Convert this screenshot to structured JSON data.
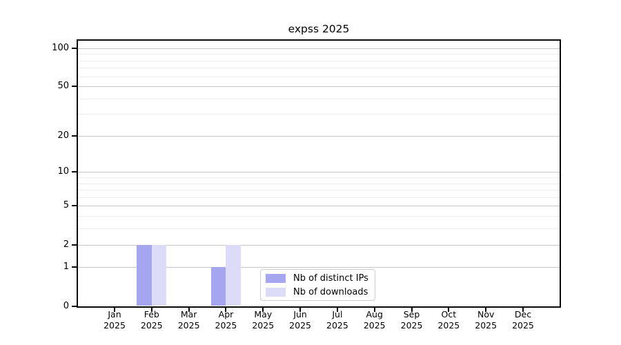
{
  "title": "expss 2025",
  "chart_data": {
    "type": "bar",
    "title": "expss 2025",
    "x_categories": [
      {
        "month": "Jan",
        "year": "2025"
      },
      {
        "month": "Feb",
        "year": "2025"
      },
      {
        "month": "Mar",
        "year": "2025"
      },
      {
        "month": "Apr",
        "year": "2025"
      },
      {
        "month": "May",
        "year": "2025"
      },
      {
        "month": "Jun",
        "year": "2025"
      },
      {
        "month": "Jul",
        "year": "2025"
      },
      {
        "month": "Aug",
        "year": "2025"
      },
      {
        "month": "Sep",
        "year": "2025"
      },
      {
        "month": "Oct",
        "year": "2025"
      },
      {
        "month": "Nov",
        "year": "2025"
      },
      {
        "month": "Dec",
        "year": "2025"
      }
    ],
    "series": [
      {
        "name": "Nb of distinct IPs",
        "color": "#a6a6f0",
        "values": [
          0,
          2,
          0,
          1,
          0,
          0,
          0,
          0,
          0,
          0,
          0,
          0
        ]
      },
      {
        "name": "Nb of downloads",
        "color": "#dcdcf8",
        "values": [
          0,
          2,
          0,
          2,
          0,
          0,
          0,
          0,
          0,
          0,
          0,
          0
        ]
      }
    ],
    "y_axis": {
      "scale": "log1p",
      "tick_values": [
        0,
        1,
        2,
        5,
        10,
        20,
        50,
        100
      ],
      "minor_gridline_values": [
        3,
        4,
        6,
        7,
        8,
        9,
        30,
        40,
        60,
        70,
        80,
        90
      ],
      "range": [
        0,
        114
      ]
    },
    "x_axis": {
      "tick_year": "2025"
    },
    "legend": {
      "entries": [
        "Nb of distinct IPs",
        "Nb of downloads"
      ],
      "position": "lower center"
    },
    "grid": true,
    "colors": {
      "spine": "#0a0a0a",
      "grid_major": "#c6c6c6",
      "grid_minor": "#ededed",
      "legend_border": "#cccccc"
    }
  }
}
